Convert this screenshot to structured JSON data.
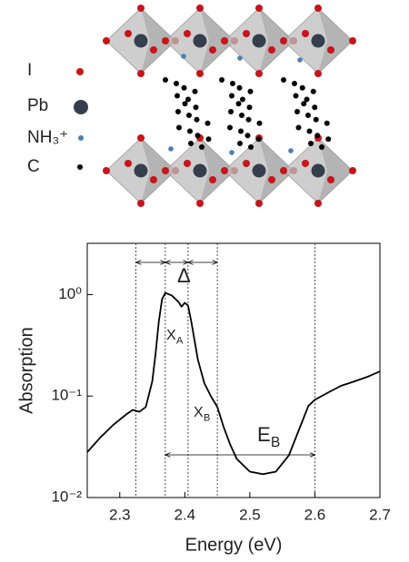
{
  "structure_legend": [
    "I",
    "Pb",
    "NH₃⁺",
    "C"
  ],
  "chart_data": {
    "type": "line",
    "xlabel": "Energy (eV)",
    "ylabel": "Absorption",
    "x": [
      2.25,
      2.27,
      2.29,
      2.31,
      2.32,
      2.33,
      2.34,
      2.35,
      2.355,
      2.36,
      2.365,
      2.37,
      2.38,
      2.39,
      2.395,
      2.4,
      2.405,
      2.41,
      2.42,
      2.43,
      2.44,
      2.45,
      2.46,
      2.47,
      2.48,
      2.5,
      2.52,
      2.54,
      2.56,
      2.58,
      2.59,
      2.6,
      2.62,
      2.64,
      2.66,
      2.68,
      2.7
    ],
    "series": [
      {
        "color": "#000000",
        "values": [
          0.028,
          0.039,
          0.052,
          0.066,
          0.073,
          0.07,
          0.078,
          0.14,
          0.26,
          0.54,
          0.9,
          1.04,
          0.98,
          0.85,
          0.76,
          0.83,
          0.78,
          0.54,
          0.23,
          0.134,
          0.1,
          0.078,
          0.049,
          0.033,
          0.024,
          0.018,
          0.017,
          0.018,
          0.026,
          0.055,
          0.08,
          0.092,
          0.108,
          0.126,
          0.139,
          0.154,
          0.175
        ]
      }
    ],
    "xlim": [
      2.25,
      2.7
    ],
    "xticks": [
      2.3,
      2.4,
      2.5,
      2.6,
      2.7
    ],
    "ylim": [
      0.01,
      3.2
    ],
    "log_y": true,
    "yticks": [
      {
        "value": 0.01,
        "label": "10⁻²"
      },
      {
        "value": 0.1,
        "label": "10⁻¹"
      },
      {
        "value": 1,
        "label": "10⁰"
      }
    ],
    "vlines": [
      2.325,
      2.37,
      2.405,
      2.45,
      2.6
    ],
    "arrows": [
      [
        2.325,
        2.37
      ],
      [
        2.37,
        2.405
      ],
      [
        2.405,
        2.45
      ],
      [
        2.37,
        2.6
      ]
    ],
    "annotations": [
      {
        "text": "Δ"
      },
      {
        "text": "X",
        "sub": "A"
      },
      {
        "text": "X",
        "sub": "B"
      },
      {
        "text": "E",
        "sub": "B"
      }
    ]
  }
}
